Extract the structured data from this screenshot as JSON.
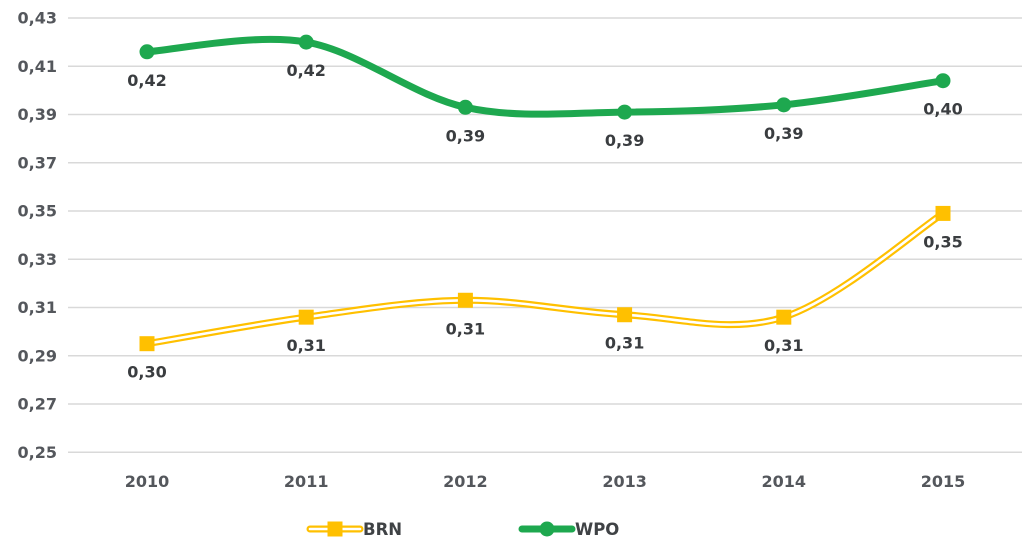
{
  "chart_data": {
    "type": "line",
    "title": "",
    "xlabel": "",
    "ylabel": "",
    "grid": true,
    "legend_position": "bottom",
    "decimal_separator": ",",
    "categories": [
      "2010",
      "2011",
      "2012",
      "2013",
      "2014",
      "2015"
    ],
    "ylim": [
      0.25,
      0.43
    ],
    "y_ticks": [
      "0,43",
      "0,41",
      "0,39",
      "0,37",
      "0,35",
      "0,33",
      "0,31",
      "0,29",
      "0,27",
      "0,25"
    ],
    "y_tick_values": [
      0.43,
      0.41,
      0.39,
      0.37,
      0.35,
      0.33,
      0.31,
      0.29,
      0.27,
      0.25
    ],
    "series": [
      {
        "name": "BRN",
        "color": "#FFC000",
        "marker": "square",
        "line_style": "double",
        "values": [
          0.295,
          0.306,
          0.313,
          0.307,
          0.306,
          0.349
        ],
        "labels": [
          "0,30",
          "0,31",
          "0,31",
          "0,31",
          "0,31",
          "0,35"
        ]
      },
      {
        "name": "WPO",
        "color": "#1EA84F",
        "marker": "circle",
        "line_style": "solid",
        "values": [
          0.416,
          0.42,
          0.393,
          0.391,
          0.394,
          0.404
        ],
        "labels": [
          "0,42",
          "0,42",
          "0,39",
          "0,39",
          "0,39",
          "0,40"
        ]
      }
    ],
    "colors": {
      "background": "#ffffff",
      "gridline": "#d9d9d9",
      "axis_text": "#54575c",
      "data_label_text": "#3a3d40",
      "brn": "#FFC000",
      "wpo": "#1EA84F"
    }
  }
}
